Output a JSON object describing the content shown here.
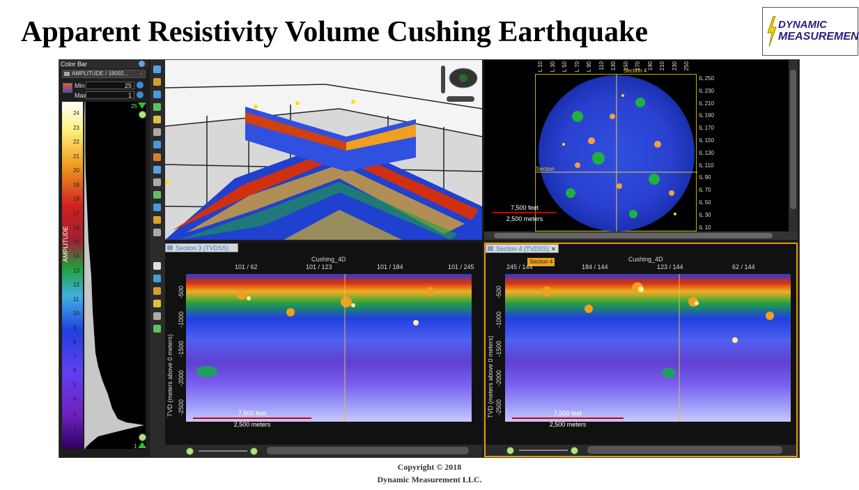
{
  "slide": {
    "title": "Apparent Resistivity Volume Cushing Earthquake",
    "logo_line1": "DYNAMIC",
    "logo_line2": "MEASUREMENT",
    "copyright_line1": "Copyright © 2018",
    "copyright_line2": "Dynamic  Measurement  LLC."
  },
  "colorbar": {
    "header": "Color Bar",
    "attribute": "AMPLITUDE / 18092...",
    "min_label": "Min",
    "min_value": "25",
    "max_label": "Max",
    "max_value": "1",
    "axis_label": "AMPLITUDE",
    "top_marker": "25",
    "bottom_marker": "1",
    "ticks": [
      "24",
      "23",
      "22",
      "21",
      "20",
      "19",
      "18",
      "17",
      "16",
      "15",
      "14",
      "13",
      "12",
      "11",
      "10",
      "9",
      "8",
      "7",
      "6",
      "5",
      "4",
      "3",
      "2"
    ]
  },
  "map_view": {
    "top_labels": [
      "L 10",
      "L 30",
      "L 50",
      "L 70",
      "L 90",
      "110",
      "130",
      "150",
      "170",
      "190",
      "210",
      "230",
      "250"
    ],
    "il_labels": [
      "IL 250",
      "IL 230",
      "IL 210",
      "IL 190",
      "IL 170",
      "IL 150",
      "IL 130",
      "IL 110",
      "IL 90",
      "IL 70",
      "IL 50",
      "IL 30",
      "IL 10"
    ],
    "section4_label": "Section 4",
    "section3_label": "Section",
    "scale_feet": "7,500 feet",
    "scale_meters": "2,500 meters"
  },
  "section3": {
    "tab": "Section 3 (TVDSS)",
    "volume": "Cushing_4D",
    "top_labels": [
      "101 / 62",
      "101 / 123",
      "101 / 184",
      "101 / 245"
    ],
    "ylabel": "TVD (meters above 0 meters)",
    "depths": [
      "-500",
      "-1000",
      "-1500",
      "-2000",
      "-2500"
    ],
    "scale_feet": "7,500 feet",
    "scale_meters": "2,500 meters"
  },
  "section4": {
    "tab": "Section 4 (TVDSS)",
    "close": "×",
    "tooltip": "Section 4",
    "volume": "Cushing_4D",
    "top_labels": [
      "245 / 144",
      "184 / 144",
      "123 / 144",
      "62 / 144"
    ],
    "ylabel": "TVD (meters above 0 meters)",
    "depths": [
      "-500",
      "-1000",
      "-1500",
      "-2000",
      "-2500"
    ],
    "scale_feet": "7,500 feet",
    "scale_meters": "2,500 meters"
  },
  "colors": {
    "accent_tab": "#2a7fd4",
    "active_border": "#e8a000",
    "scale_bar": "#d00000",
    "cursor_line": "#e0c040"
  }
}
